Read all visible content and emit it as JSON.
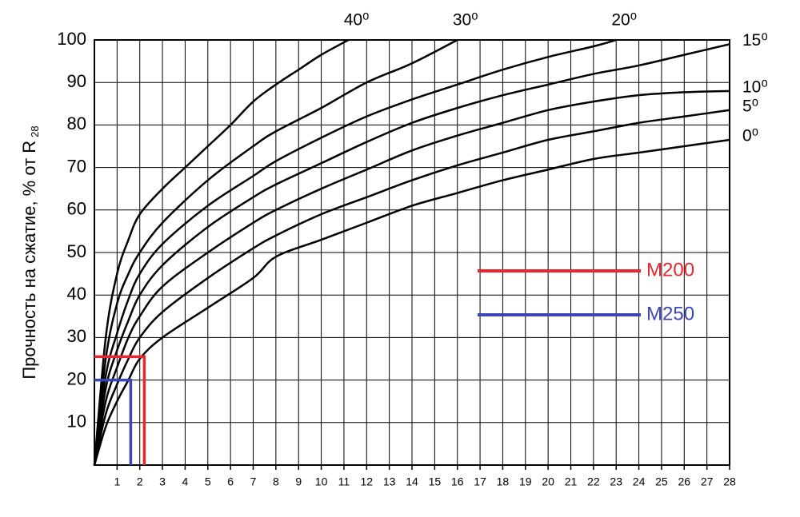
{
  "chart_data": {
    "type": "line",
    "ylabel": "Прочность на сжатие, % от R",
    "ylabel_sub": "28",
    "xlim": [
      0,
      28
    ],
    "ylim": [
      0,
      100
    ],
    "xticks": [
      1,
      2,
      3,
      4,
      5,
      6,
      7,
      8,
      9,
      10,
      11,
      12,
      13,
      14,
      15,
      16,
      17,
      18,
      19,
      20,
      21,
      22,
      23,
      24,
      25,
      26,
      27,
      28
    ],
    "yticks": [
      10,
      20,
      30,
      40,
      50,
      60,
      70,
      80,
      90,
      100
    ],
    "grid": true,
    "series": [
      {
        "name": "0⁰",
        "color": "#000000",
        "interpolation": "smooth",
        "x": [
          0,
          0.5,
          1,
          1.5,
          2,
          3,
          5,
          7,
          8,
          10,
          12,
          14,
          16,
          18,
          20,
          22,
          24,
          26,
          28
        ],
        "values": [
          0,
          9,
          15,
          20,
          25,
          30,
          37,
          44,
          49,
          53,
          57,
          61,
          64,
          67,
          69.5,
          72,
          73.5,
          75,
          76.5
        ]
      },
      {
        "name": "5⁰",
        "color": "#000000",
        "interpolation": "smooth",
        "x": [
          0,
          0.5,
          1,
          1.5,
          2,
          3,
          5,
          7,
          8,
          10,
          12,
          14,
          16,
          18,
          20,
          22,
          24,
          26,
          28
        ],
        "values": [
          0,
          12,
          19,
          25,
          30,
          36,
          44,
          51,
          54,
          59,
          63,
          67,
          70.5,
          73.5,
          76.5,
          78.5,
          80.5,
          82,
          83.5
        ]
      },
      {
        "name": "10⁰",
        "color": "#000000",
        "interpolation": "smooth",
        "x": [
          0,
          0.5,
          1,
          1.5,
          2,
          3,
          5,
          7,
          8,
          10,
          12,
          14,
          16,
          18,
          20,
          22,
          24,
          26,
          28
        ],
        "values": [
          0,
          15,
          23,
          30,
          35,
          42,
          50,
          57,
          60,
          65,
          69.5,
          74,
          77.5,
          80.5,
          83.5,
          85.5,
          87,
          87.7,
          88
        ]
      },
      {
        "name": "15⁰",
        "color": "#000000",
        "interpolation": "smooth",
        "x": [
          0,
          0.5,
          1,
          1.5,
          2,
          3,
          5,
          7,
          8,
          10,
          12,
          14,
          16,
          18,
          20,
          22,
          24,
          26,
          28
        ],
        "values": [
          0,
          18,
          27,
          34,
          40,
          47,
          56,
          63,
          66,
          71,
          76,
          80.5,
          84,
          87,
          89.5,
          92,
          94,
          96.5,
          99
        ]
      },
      {
        "name": "20⁰",
        "color": "#000000",
        "interpolation": "smooth",
        "x": [
          0,
          0.5,
          1,
          1.5,
          2,
          3,
          5,
          7,
          8,
          10,
          12,
          14,
          16,
          18,
          20,
          22,
          23
        ],
        "values": [
          0,
          21,
          31,
          39,
          45,
          52,
          61,
          68,
          71.5,
          77,
          82,
          86,
          89.5,
          93,
          96,
          98.5,
          100
        ]
      },
      {
        "name": "30⁰",
        "color": "#000000",
        "interpolation": "smooth",
        "x": [
          0,
          0.5,
          1,
          1.5,
          2,
          3,
          5,
          7,
          8,
          10,
          12,
          14,
          16
        ],
        "values": [
          0,
          25,
          38,
          45,
          50,
          57,
          67,
          75,
          78.5,
          84,
          90,
          94.5,
          100
        ]
      },
      {
        "name": "40⁰",
        "color": "#000000",
        "interpolation": "smooth",
        "x": [
          0,
          0.5,
          1,
          1.5,
          2,
          3,
          4,
          5,
          6,
          7,
          8,
          9,
          10,
          11.2
        ],
        "values": [
          0,
          30,
          45,
          53,
          59,
          65,
          70,
          75,
          80,
          85.5,
          89.5,
          93,
          96.5,
          100
        ]
      },
      {
        "name": "M200",
        "color": "#e8262d",
        "interpolation": "linear",
        "x": [
          0,
          2.2,
          2.2
        ],
        "values": [
          25.5,
          25.5,
          0
        ]
      },
      {
        "name": "M250",
        "color": "#3a46b4",
        "interpolation": "linear",
        "x": [
          0,
          1.6,
          1.6
        ],
        "values": [
          20,
          20,
          0
        ]
      }
    ]
  }
}
